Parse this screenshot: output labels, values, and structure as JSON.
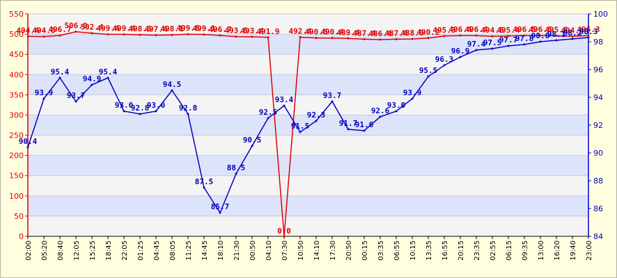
{
  "chart_data": {
    "type": "line",
    "x_ticks": [
      "02:00",
      "05:20",
      "08:40",
      "12:05",
      "15:25",
      "18:45",
      "22:05",
      "01:25",
      "04:45",
      "08:05",
      "11:25",
      "14:45",
      "18:10",
      "21:30",
      "00:50",
      "04:10",
      "07:30",
      "10:50",
      "14:10",
      "17:30",
      "20:50",
      "00:15",
      "03:35",
      "06:55",
      "10:15",
      "13:35",
      "16:55",
      "20:15",
      "23:35",
      "02:55",
      "06:15",
      "09:35",
      "13:00",
      "16:20",
      "19:40",
      "23:00"
    ],
    "left_axis": {
      "ylim": [
        0,
        550
      ],
      "ticks": [
        "0",
        "50",
        "100",
        "150",
        "200",
        "250",
        "300",
        "350",
        "400",
        "450",
        "500",
        "550"
      ],
      "color": "#E00000"
    },
    "right_axis": {
      "ylim": [
        84,
        100
      ],
      "ticks": [
        "84",
        "86",
        "88",
        "90",
        "92",
        "94",
        "96",
        "98",
        "100"
      ],
      "color": "#0000C0"
    },
    "grid": true,
    "series": [
      {
        "axis": "left",
        "color": "#E00000",
        "x": [
          0,
          1,
          2,
          3,
          4,
          5,
          6,
          7,
          8,
          9,
          10,
          11,
          12,
          13,
          14,
          15,
          16,
          17,
          18,
          19,
          20,
          21,
          22,
          23,
          24,
          25,
          26,
          27,
          28,
          29,
          30,
          31,
          32,
          33,
          34,
          35
        ],
        "values": [
          494.4,
          494.0,
          496.7,
          506.0,
          502.4,
          499.4,
          499.4,
          498.3,
          497.4,
          498.1,
          499.8,
          499.1,
          496.7,
          493.8,
          493.4,
          491.9,
          0.0,
          492.4,
          490.5,
          490.4,
          489.4,
          487.4,
          486.4,
          487.4,
          488.0,
          490.2,
          495.3,
          496.4,
          496.4,
          494.6,
          495.4,
          496.5,
          496.6,
          495.8,
          494.4,
          496.3
        ],
        "labels": [
          "494.4",
          "494.0",
          "496.7",
          "506.0",
          "502.4",
          "499.4",
          "499.4",
          "498.3",
          "497.4",
          "498.1",
          "499.8",
          "499.1",
          "496.7",
          "493.8",
          "493.4",
          "491.9",
          "0.0",
          "492.4",
          "490.5",
          "490.4",
          "489.4",
          "487.4",
          "486.4",
          "487.4",
          "488.0",
          "490.2",
          "495.3",
          "496.4",
          "496.4",
          "494.6",
          "495.4",
          "496.5",
          "496.6",
          "495.8",
          "494.4",
          "496.3"
        ]
      },
      {
        "axis": "right",
        "color": "#0000C0",
        "x": [
          0,
          1,
          2,
          3,
          4,
          5,
          6,
          7,
          8,
          9,
          10,
          11,
          12,
          13,
          14,
          15,
          16,
          17,
          18,
          19,
          20,
          21,
          22,
          23,
          24,
          25,
          26,
          27,
          28,
          29,
          30,
          31,
          32,
          33,
          34,
          35
        ],
        "values": [
          90.4,
          93.9,
          95.4,
          93.7,
          94.9,
          95.4,
          93.0,
          92.8,
          93.0,
          94.5,
          92.8,
          87.5,
          85.7,
          88.5,
          90.5,
          92.5,
          93.4,
          91.5,
          92.3,
          93.7,
          91.7,
          91.6,
          92.6,
          93.0,
          93.9,
          95.5,
          96.3,
          96.9,
          97.4,
          97.5,
          97.7,
          97.8,
          98.0,
          98.1,
          98.2,
          98.3
        ],
        "labels": [
          "90.4",
          "93.9",
          "95.4",
          "93.7",
          "94.9",
          "95.4",
          "93.0",
          "92.8",
          "93.0",
          "94.5",
          "92.8",
          "87.5",
          "85.7",
          "88.5",
          "90.5",
          "92.5",
          "93.4",
          "91.5",
          "92.3",
          "93.7",
          "91.7",
          "91.6",
          "92.6",
          "93.0",
          "93.9",
          "95.5",
          "96.3",
          "96.9",
          "97.4",
          "97.5",
          "97.7",
          "97.8",
          "98.0",
          "98.1",
          "98.2",
          "98.3"
        ]
      }
    ]
  }
}
